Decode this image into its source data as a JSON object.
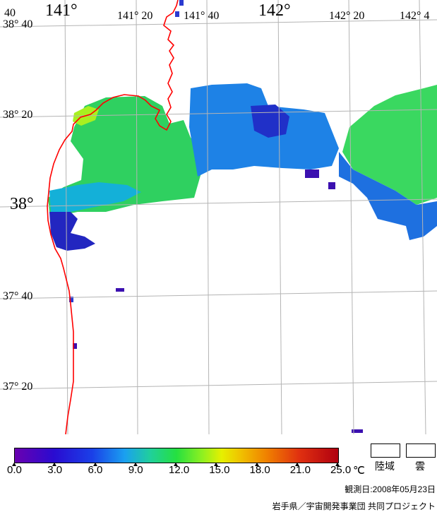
{
  "map": {
    "lon_labels": [
      "141°",
      "141° 20",
      "141° 40",
      "142°",
      "142° 20",
      "142° 4"
    ],
    "lat_labels": [
      "38° 40",
      "38° 20",
      "38°",
      "37° 40",
      "37° 20"
    ],
    "corner_fragment": "40"
  },
  "colorbar": {
    "tick_labels": [
      "0.0",
      "3.0",
      "6.0",
      "9.0",
      "12.0",
      "15.0",
      "18.0",
      "21.0",
      "25.0"
    ],
    "unit": "℃"
  },
  "legend": {
    "land_label": "陸域",
    "cloud_label": "雲",
    "land_color": "#ffffff",
    "cloud_color": "#ffffff"
  },
  "observation": {
    "text": "観測日:2008年05月23日"
  },
  "credit": {
    "text": "岩手県／宇宙開発事業団 共同プロジェクト"
  },
  "colors": {
    "coastline": "#ff0000",
    "grid": "#b4b4b4"
  }
}
